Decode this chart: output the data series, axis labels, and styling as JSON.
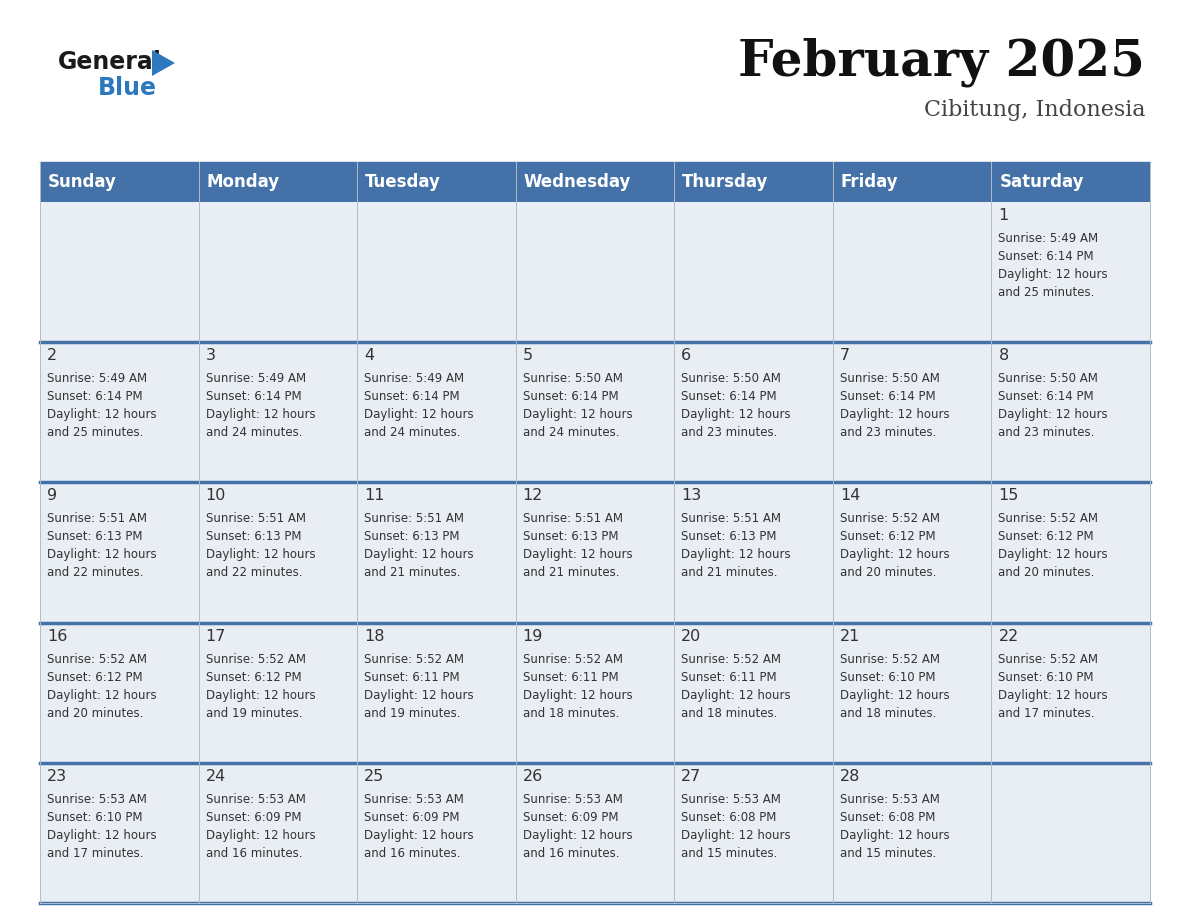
{
  "title": "February 2025",
  "subtitle": "Cibitung, Indonesia",
  "days_of_week": [
    "Sunday",
    "Monday",
    "Tuesday",
    "Wednesday",
    "Thursday",
    "Friday",
    "Saturday"
  ],
  "header_bg": "#4472a8",
  "header_text_color": "#ffffff",
  "cell_bg": "#e8eef4",
  "cell_bg_empty": "#e8eef4",
  "row_separator_color": "#4472a8",
  "col_separator_color": "#b0bec5",
  "day_num_color": "#333333",
  "text_color": "#333333",
  "title_color": "#111111",
  "subtitle_color": "#444444",
  "logo_general_color": "#1a1a1a",
  "logo_blue_color": "#2e78c0",
  "logo_triangle_color": "#2e78c0",
  "calendar": [
    [
      {
        "day": null,
        "sunrise": null,
        "sunset": null,
        "daylight": null
      },
      {
        "day": null,
        "sunrise": null,
        "sunset": null,
        "daylight": null
      },
      {
        "day": null,
        "sunrise": null,
        "sunset": null,
        "daylight": null
      },
      {
        "day": null,
        "sunrise": null,
        "sunset": null,
        "daylight": null
      },
      {
        "day": null,
        "sunrise": null,
        "sunset": null,
        "daylight": null
      },
      {
        "day": null,
        "sunrise": null,
        "sunset": null,
        "daylight": null
      },
      {
        "day": 1,
        "sunrise": "5:49 AM",
        "sunset": "6:14 PM",
        "daylight": "12 hours and 25 minutes."
      }
    ],
    [
      {
        "day": 2,
        "sunrise": "5:49 AM",
        "sunset": "6:14 PM",
        "daylight": "12 hours and 25 minutes."
      },
      {
        "day": 3,
        "sunrise": "5:49 AM",
        "sunset": "6:14 PM",
        "daylight": "12 hours and 24 minutes."
      },
      {
        "day": 4,
        "sunrise": "5:49 AM",
        "sunset": "6:14 PM",
        "daylight": "12 hours and 24 minutes."
      },
      {
        "day": 5,
        "sunrise": "5:50 AM",
        "sunset": "6:14 PM",
        "daylight": "12 hours and 24 minutes."
      },
      {
        "day": 6,
        "sunrise": "5:50 AM",
        "sunset": "6:14 PM",
        "daylight": "12 hours and 23 minutes."
      },
      {
        "day": 7,
        "sunrise": "5:50 AM",
        "sunset": "6:14 PM",
        "daylight": "12 hours and 23 minutes."
      },
      {
        "day": 8,
        "sunrise": "5:50 AM",
        "sunset": "6:14 PM",
        "daylight": "12 hours and 23 minutes."
      }
    ],
    [
      {
        "day": 9,
        "sunrise": "5:51 AM",
        "sunset": "6:13 PM",
        "daylight": "12 hours and 22 minutes."
      },
      {
        "day": 10,
        "sunrise": "5:51 AM",
        "sunset": "6:13 PM",
        "daylight": "12 hours and 22 minutes."
      },
      {
        "day": 11,
        "sunrise": "5:51 AM",
        "sunset": "6:13 PM",
        "daylight": "12 hours and 21 minutes."
      },
      {
        "day": 12,
        "sunrise": "5:51 AM",
        "sunset": "6:13 PM",
        "daylight": "12 hours and 21 minutes."
      },
      {
        "day": 13,
        "sunrise": "5:51 AM",
        "sunset": "6:13 PM",
        "daylight": "12 hours and 21 minutes."
      },
      {
        "day": 14,
        "sunrise": "5:52 AM",
        "sunset": "6:12 PM",
        "daylight": "12 hours and 20 minutes."
      },
      {
        "day": 15,
        "sunrise": "5:52 AM",
        "sunset": "6:12 PM",
        "daylight": "12 hours and 20 minutes."
      }
    ],
    [
      {
        "day": 16,
        "sunrise": "5:52 AM",
        "sunset": "6:12 PM",
        "daylight": "12 hours and 20 minutes."
      },
      {
        "day": 17,
        "sunrise": "5:52 AM",
        "sunset": "6:12 PM",
        "daylight": "12 hours and 19 minutes."
      },
      {
        "day": 18,
        "sunrise": "5:52 AM",
        "sunset": "6:11 PM",
        "daylight": "12 hours and 19 minutes."
      },
      {
        "day": 19,
        "sunrise": "5:52 AM",
        "sunset": "6:11 PM",
        "daylight": "12 hours and 18 minutes."
      },
      {
        "day": 20,
        "sunrise": "5:52 AM",
        "sunset": "6:11 PM",
        "daylight": "12 hours and 18 minutes."
      },
      {
        "day": 21,
        "sunrise": "5:52 AM",
        "sunset": "6:10 PM",
        "daylight": "12 hours and 18 minutes."
      },
      {
        "day": 22,
        "sunrise": "5:52 AM",
        "sunset": "6:10 PM",
        "daylight": "12 hours and 17 minutes."
      }
    ],
    [
      {
        "day": 23,
        "sunrise": "5:53 AM",
        "sunset": "6:10 PM",
        "daylight": "12 hours and 17 minutes."
      },
      {
        "day": 24,
        "sunrise": "5:53 AM",
        "sunset": "6:09 PM",
        "daylight": "12 hours and 16 minutes."
      },
      {
        "day": 25,
        "sunrise": "5:53 AM",
        "sunset": "6:09 PM",
        "daylight": "12 hours and 16 minutes."
      },
      {
        "day": 26,
        "sunrise": "5:53 AM",
        "sunset": "6:09 PM",
        "daylight": "12 hours and 16 minutes."
      },
      {
        "day": 27,
        "sunrise": "5:53 AM",
        "sunset": "6:08 PM",
        "daylight": "12 hours and 15 minutes."
      },
      {
        "day": 28,
        "sunrise": "5:53 AM",
        "sunset": "6:08 PM",
        "daylight": "12 hours and 15 minutes."
      },
      {
        "day": null,
        "sunrise": null,
        "sunset": null,
        "daylight": null
      }
    ]
  ]
}
